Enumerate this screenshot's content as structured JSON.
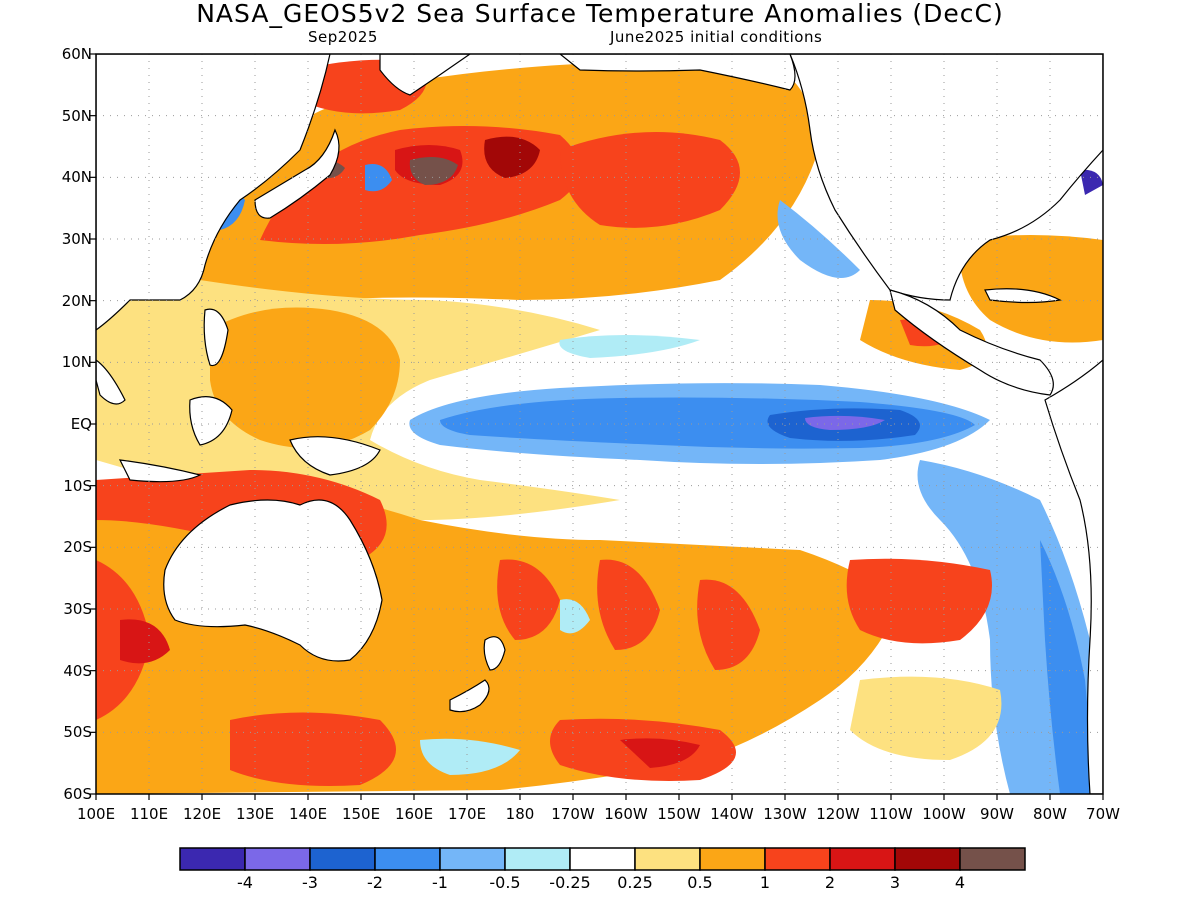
{
  "title": "NASA_GEOS5v2 Sea Surface Temperature Anomalies (DecC)",
  "subtitle_left": "Sep2025",
  "subtitle_right": "June2025 initial conditions",
  "map": {
    "lat_labels": [
      "60N",
      "50N",
      "40N",
      "30N",
      "20N",
      "10N",
      "EQ",
      "10S",
      "20S",
      "30S",
      "40S",
      "50S",
      "60S"
    ],
    "lon_labels": [
      "100E",
      "110E",
      "120E",
      "130E",
      "140E",
      "150E",
      "160E",
      "170E",
      "180",
      "170W",
      "160W",
      "150W",
      "140W",
      "130W",
      "120W",
      "110W",
      "100W",
      "90W",
      "80W",
      "70W"
    ],
    "lat_range": [
      -60,
      60
    ],
    "lon_range": [
      100,
      290
    ],
    "grid": "dotted"
  },
  "colorbar": {
    "colors": [
      "#3b28b0",
      "#7b68e8",
      "#1d63d0",
      "#3c8ef0",
      "#74b6f8",
      "#b0ecf6",
      "#ffffff",
      "#fde180",
      "#fba616",
      "#f7431c",
      "#d81515",
      "#a20707",
      "#75514a"
    ],
    "labels": [
      "-4",
      "-3",
      "-2",
      "-1",
      "-0.5",
      "-0.25",
      "0.25",
      "0.5",
      "1",
      "2",
      "3",
      "4"
    ]
  },
  "colors": {
    "land": "#ffffff",
    "ocean_neutral": "#ffffff",
    "coast": "#000000"
  }
}
